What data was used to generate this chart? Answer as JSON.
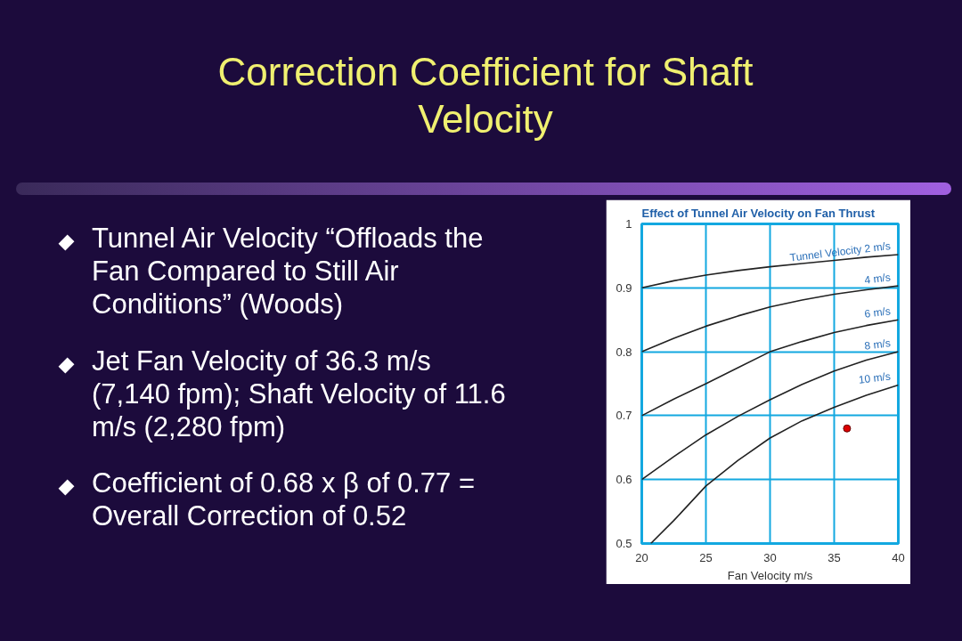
{
  "chart_data": {
    "type": "line",
    "title": "Correction Coefficient for Shaft Velocity",
    "subtitle": "Effect of Tunnel Air Velocity on Fan Thrust",
    "xlabel": "Fan Velocity m/s",
    "annotations": [
      "Tunnel Air Velocity “Offloads the Fan Compared to Still Air Conditions” (Woods)",
      "Jet Fan Velocity of 36.3 m/s (7,140 fpm); Shaft Velocity of 11.6 m/s (2,280 fpm)",
      "Coefficient of 0.68 x β of 0.77 = Overall Correction of 0.52"
    ],
    "x": [
      20,
      22.5,
      25,
      27.5,
      30,
      32.5,
      35,
      37.5,
      40
    ],
    "series": [
      {
        "name": "Tunnel Velocity 2 m/s",
        "color": "#222222",
        "values": [
          0.9,
          0.911,
          0.92,
          0.927,
          0.933,
          0.938,
          0.943,
          0.948,
          0.952
        ]
      },
      {
        "name": "4 m/s",
        "color": "#222222",
        "values": [
          0.8,
          0.821,
          0.84,
          0.856,
          0.87,
          0.881,
          0.89,
          0.897,
          0.903
        ]
      },
      {
        "name": "6 m/s",
        "color": "#222222",
        "values": [
          0.7,
          0.726,
          0.75,
          0.775,
          0.8,
          0.816,
          0.83,
          0.841,
          0.85
        ]
      },
      {
        "name": "8 m/s",
        "color": "#222222",
        "values": [
          0.6,
          0.636,
          0.67,
          0.699,
          0.725,
          0.749,
          0.77,
          0.787,
          0.8
        ]
      },
      {
        "name": "10 m/s",
        "color": "#222222",
        "x": [
          20.7,
          22.5,
          25,
          27.5,
          30,
          32.5,
          35,
          37.5,
          40
        ],
        "values": [
          0.5,
          0.536,
          0.59,
          0.63,
          0.665,
          0.692,
          0.713,
          0.732,
          0.748
        ]
      },
      {
        "type": "scatter",
        "marker": "circle",
        "color": "#dd0000",
        "x": [
          36
        ],
        "values": [
          0.68
        ]
      }
    ],
    "xlim": [
      20,
      40
    ],
    "xticks": [
      20,
      25,
      30,
      35,
      40
    ],
    "ylim": [
      0.5,
      1
    ],
    "yticks": [
      0.5,
      0.6,
      0.7,
      0.8,
      0.9,
      1
    ],
    "grid": true,
    "marker": "none",
    "line_style": "solid"
  }
}
